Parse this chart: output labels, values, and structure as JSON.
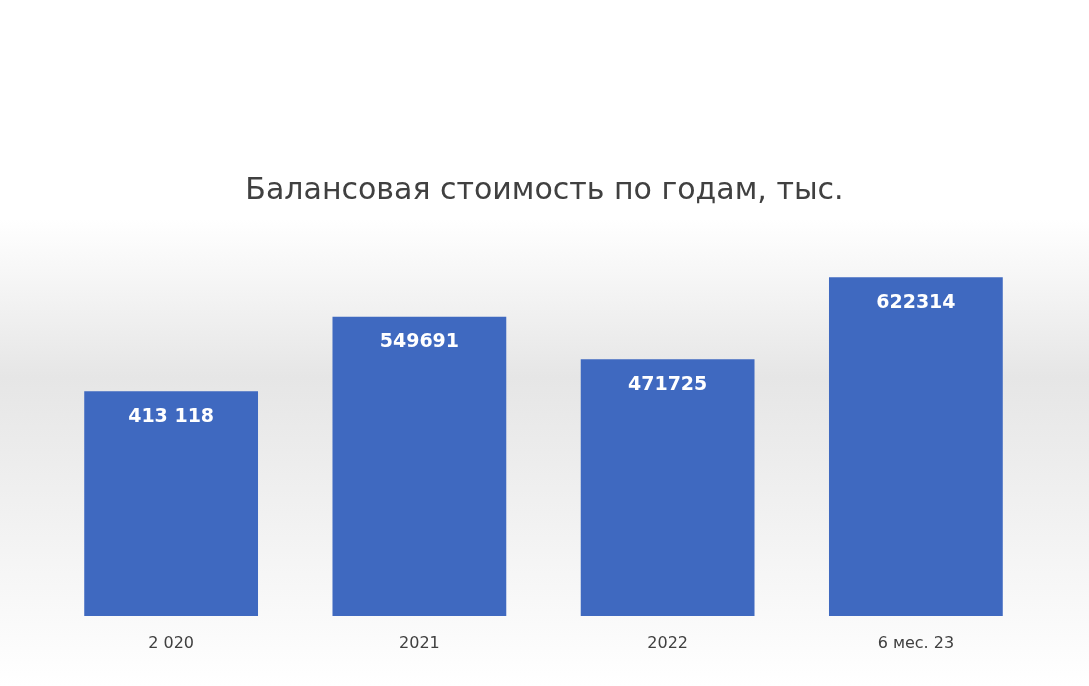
{
  "chart_data": {
    "type": "bar",
    "title": "Балансовая стоимость по годам, тыс.",
    "categories": [
      "2 020",
      "2021",
      "2022",
      "6 мес. 23"
    ],
    "values": [
      413118,
      549691,
      471725,
      622314
    ],
    "value_labels": [
      "413 118",
      "549691",
      "471725",
      "622314"
    ],
    "color": "#3f69c0"
  }
}
